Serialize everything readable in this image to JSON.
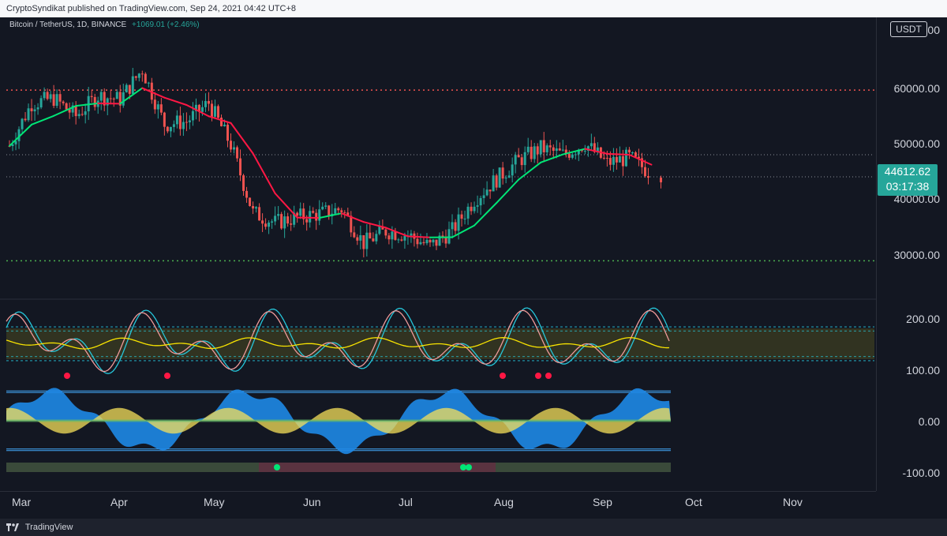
{
  "header": {
    "published_text": "CryptoSyndikat published on TradingView.com, Sep 24, 2021 04:42 UTC+8"
  },
  "symbol": {
    "name": "Bitcoin / TetherUS, 1D, BINANCE",
    "change": "+1069.01 (+2.46%)"
  },
  "price_axis": {
    "currency_button": "USDT",
    "ticks": [
      "70000.00",
      "60000.00",
      "50000.00",
      "40000.00",
      "30000.00"
    ],
    "last_price": "44612.62",
    "countdown": "03:17:38",
    "last_price_color": "#26a69a"
  },
  "osc_axis": {
    "ticks": [
      "200.00",
      "100.00",
      "0.00",
      "-100.00"
    ]
  },
  "time_axis": {
    "ticks": [
      "Mar",
      "Apr",
      "May",
      "Jun",
      "Jul",
      "Aug",
      "Sep",
      "Oct",
      "Nov"
    ]
  },
  "footer": {
    "brand": "TradingView"
  },
  "colors": {
    "up": "#26a69a",
    "down": "#ef5350",
    "ma_up": "#00e676",
    "ma_down": "#ff1744",
    "resistance": "#ef5350",
    "support": "#4caf50",
    "band": "#f9e400",
    "osc_blue": "#1e88e5",
    "osc_yellow": "#f5e05a"
  },
  "chart_data": {
    "type": "candlestick",
    "symbol": "BTCUSDT",
    "interval": "1D",
    "x_range": [
      "2021-02-28",
      "2021-11-30"
    ],
    "y_range": [
      24000,
      70000
    ],
    "closes_weekly": [
      {
        "x": "2021-03-01",
        "close": 49600
      },
      {
        "x": "2021-03-08",
        "close": 57300
      },
      {
        "x": "2021-03-15",
        "close": 58200
      },
      {
        "x": "2021-03-22",
        "close": 55000
      },
      {
        "x": "2021-03-29",
        "close": 58700
      },
      {
        "x": "2021-04-05",
        "close": 58000
      },
      {
        "x": "2021-04-12",
        "close": 63500
      },
      {
        "x": "2021-04-19",
        "close": 53500
      },
      {
        "x": "2021-04-26",
        "close": 54000
      },
      {
        "x": "2021-05-03",
        "close": 57400
      },
      {
        "x": "2021-05-10",
        "close": 49800
      },
      {
        "x": "2021-05-17",
        "close": 37500
      },
      {
        "x": "2021-05-24",
        "close": 35700
      },
      {
        "x": "2021-05-31",
        "close": 36700
      },
      {
        "x": "2021-06-07",
        "close": 37300
      },
      {
        "x": "2021-06-14",
        "close": 38200
      },
      {
        "x": "2021-06-21",
        "close": 32000
      },
      {
        "x": "2021-06-28",
        "close": 34200
      },
      {
        "x": "2021-07-05",
        "close": 33500
      },
      {
        "x": "2021-07-12",
        "close": 31400
      },
      {
        "x": "2021-07-19",
        "close": 34300
      },
      {
        "x": "2021-07-26",
        "close": 39900
      },
      {
        "x": "2021-08-02",
        "close": 43600
      },
      {
        "x": "2021-08-09",
        "close": 47000
      },
      {
        "x": "2021-08-16",
        "close": 49200
      },
      {
        "x": "2021-08-23",
        "close": 48000
      },
      {
        "x": "2021-08-30",
        "close": 50000
      },
      {
        "x": "2021-09-06",
        "close": 46500
      },
      {
        "x": "2021-09-13",
        "close": 47500
      },
      {
        "x": "2021-09-20",
        "close": 44600
      }
    ],
    "levels": [
      {
        "name": "resistance",
        "value": 59700
      },
      {
        "name": "support",
        "value": 28800
      },
      {
        "name": "level-upper",
        "value": 48000
      },
      {
        "name": "level-lower",
        "value": 44000
      }
    ],
    "oscillator_range": [
      -110,
      220
    ]
  }
}
